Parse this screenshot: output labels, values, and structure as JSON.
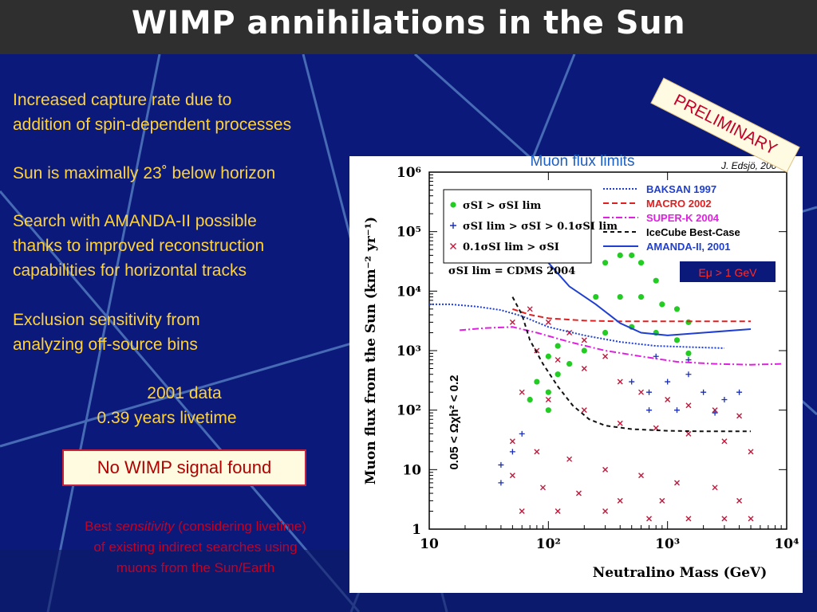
{
  "slide": {
    "title": "WIMP annihilations in the Sun",
    "bullets": [
      [
        "Increased capture rate due to",
        "addition of spin-dependent processes"
      ],
      [
        "Sun is maximally 23˚ below horizon"
      ],
      [
        "Search with AMANDA-II possible",
        "thanks to improved reconstruction",
        "capabilities for horizontal tracks"
      ],
      [
        "Exclusion sensitivity from",
        "analyzing off-source bins"
      ]
    ],
    "data_note": [
      "2001 data",
      "0.39 years livetime"
    ],
    "signal_box": "No WIMP signal found",
    "best_note": {
      "pre": "Best ",
      "em": "sensitivity",
      "post": " (considering livetime)",
      "line2": "of existing indirect searches using",
      "line3": "muons from the Sun/Earth"
    },
    "preliminary": "PRELIMINARY",
    "plot_caption": "Muon flux limits",
    "colors": {
      "background": "#0b1a7a",
      "title_bar": "#2f2f2f",
      "bullet_text": "#ffd23a",
      "accent_red": "#c8001e",
      "caption_blue": "#1c5fc4"
    }
  },
  "chart_data": {
    "type": "scatter",
    "credit": "J. Edsjö, 2004",
    "xlabel": "Neutralino Mass (GeV)",
    "ylabel": "Muon flux from the Sun (km⁻² yr⁻¹)",
    "xscale": "log",
    "yscale": "log",
    "xlim": [
      10,
      10000
    ],
    "ylim": [
      1,
      1000000
    ],
    "xticks": [
      "10",
      "10²",
      "10³",
      "10⁴"
    ],
    "yticks": [
      "1",
      "10",
      "10²",
      "10³",
      "10⁴",
      "10⁵",
      "10⁶"
    ],
    "band_label": "0.05 < Ωχh² < 0.2",
    "threshold_label": "Eμ > 1 GeV",
    "model_legend": [
      {
        "text": "σSI > σSI lim",
        "marker": "circle",
        "color": "#22cc22"
      },
      {
        "text": "σSI lim > σSI > 0.1σSI lim",
        "marker": "plus",
        "color": "#1a2fb5"
      },
      {
        "text": "0.1σSI lim > σSI",
        "marker": "cross",
        "color": "#c0183a"
      }
    ],
    "cdms_label": "σSI lim = CDMS 2004",
    "limits": [
      {
        "name": "BAKSAN 1997",
        "color": "#1f3fd0",
        "dash": "2,2",
        "x": [
          10,
          15,
          25,
          40,
          60,
          100,
          200,
          400,
          800,
          1500,
          3000
        ],
        "y": [
          6000,
          6000,
          5500,
          4800,
          3800,
          2500,
          1800,
          1400,
          1200,
          1150,
          1100
        ]
      },
      {
        "name": "MACRO 2002",
        "color": "#e02020",
        "dash": "7,4",
        "x": [
          50,
          70,
          100,
          200,
          400,
          800,
          1500,
          3000,
          5000
        ],
        "y": [
          5000,
          4000,
          3500,
          3200,
          3100,
          3100,
          3100,
          3100,
          3100
        ]
      },
      {
        "name": "SUPER-K 2004",
        "color": "#e020e0",
        "dash": "8,3,2,3",
        "x": [
          18,
          30,
          50,
          80,
          150,
          300,
          600,
          1200,
          2500,
          5000,
          9000
        ],
        "y": [
          2200,
          2400,
          2500,
          2000,
          1400,
          1000,
          800,
          650,
          600,
          580,
          600
        ]
      },
      {
        "name": "IceCube Best-Case",
        "color": "#111111",
        "dash": "5,4",
        "x": [
          50,
          60,
          70,
          90,
          120,
          160,
          220,
          300,
          500,
          1000,
          2000,
          5000
        ],
        "y": [
          8000,
          4000,
          1500,
          600,
          250,
          120,
          70,
          55,
          48,
          45,
          44,
          44
        ]
      },
      {
        "name": "AMANDA-II, 2001",
        "color": "#1f3fd0",
        "dash": "",
        "x": [
          100,
          150,
          250,
          400,
          600,
          1000,
          2000,
          5000
        ],
        "y": [
          30000,
          12000,
          6000,
          2900,
          2000,
          1800,
          2000,
          2300
        ]
      }
    ],
    "models": {
      "circle": [
        [
          300,
          30000
        ],
        [
          400,
          40000
        ],
        [
          500,
          40000
        ],
        [
          600,
          30000
        ],
        [
          800,
          15000
        ],
        [
          250,
          8000
        ],
        [
          400,
          8000
        ],
        [
          600,
          8000
        ],
        [
          900,
          6000
        ],
        [
          1200,
          5000
        ],
        [
          1500,
          3000
        ],
        [
          300,
          2000
        ],
        [
          500,
          2500
        ],
        [
          800,
          2000
        ],
        [
          1200,
          1500
        ],
        [
          1500,
          900
        ],
        [
          100,
          800
        ],
        [
          120,
          1200
        ],
        [
          150,
          600
        ],
        [
          200,
          1000
        ],
        [
          80,
          300
        ],
        [
          100,
          200
        ],
        [
          120,
          400
        ],
        [
          70,
          150
        ],
        [
          100,
          100
        ]
      ],
      "plus": [
        [
          500,
          300
        ],
        [
          700,
          200
        ],
        [
          1000,
          300
        ],
        [
          1500,
          400
        ],
        [
          2000,
          200
        ],
        [
          3000,
          150
        ],
        [
          4000,
          200
        ],
        [
          700,
          100
        ],
        [
          1200,
          100
        ],
        [
          2500,
          90
        ],
        [
          40,
          12
        ],
        [
          40,
          6
        ],
        [
          50,
          20
        ],
        [
          60,
          40
        ],
        [
          800,
          800
        ],
        [
          1500,
          700
        ]
      ],
      "cross": [
        [
          50,
          3000
        ],
        [
          70,
          5000
        ],
        [
          100,
          3000
        ],
        [
          150,
          2000
        ],
        [
          200,
          1500
        ],
        [
          300,
          800
        ],
        [
          80,
          1000
        ],
        [
          120,
          700
        ],
        [
          200,
          500
        ],
        [
          400,
          300
        ],
        [
          600,
          200
        ],
        [
          1000,
          150
        ],
        [
          1500,
          120
        ],
        [
          2500,
          100
        ],
        [
          4000,
          80
        ],
        [
          60,
          200
        ],
        [
          100,
          150
        ],
        [
          200,
          100
        ],
        [
          400,
          60
        ],
        [
          800,
          50
        ],
        [
          1500,
          40
        ],
        [
          3000,
          30
        ],
        [
          5000,
          20
        ],
        [
          50,
          30
        ],
        [
          80,
          20
        ],
        [
          150,
          15
        ],
        [
          300,
          10
        ],
        [
          600,
          8
        ],
        [
          1200,
          6
        ],
        [
          2500,
          5
        ],
        [
          4000,
          3
        ],
        [
          60,
          2
        ],
        [
          120,
          2
        ],
        [
          300,
          2
        ],
        [
          700,
          1.5
        ],
        [
          1500,
          1.5
        ],
        [
          3000,
          1.5
        ],
        [
          5000,
          1.5
        ],
        [
          50,
          8
        ],
        [
          90,
          5
        ],
        [
          180,
          4
        ],
        [
          400,
          3
        ],
        [
          900,
          3
        ]
      ]
    }
  }
}
